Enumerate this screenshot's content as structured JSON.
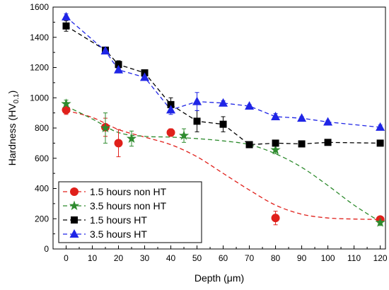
{
  "chart_data": {
    "type": "scatter",
    "title": "",
    "xlabel": "Depth (μm)",
    "ylabel": "Hardness (HV",
    "ylabel_subscript": "0.1",
    "ylabel_close": ")",
    "xlim": [
      -5,
      122
    ],
    "ylim": [
      0,
      1600
    ],
    "x_ticks": [
      0,
      10,
      20,
      30,
      40,
      50,
      60,
      70,
      80,
      90,
      100,
      110,
      120
    ],
    "y_ticks": [
      0,
      200,
      400,
      600,
      800,
      1000,
      1200,
      1400,
      1600
    ],
    "grid": false,
    "legend_position": "bottom-left",
    "series": [
      {
        "name": "1.5 hours non HT",
        "color": "#e0201b",
        "marker": "circle",
        "line_style": "none",
        "points": [
          {
            "x": 0,
            "y": 920,
            "err": 30
          },
          {
            "x": 15,
            "y": 805,
            "err": 60
          },
          {
            "x": 20,
            "y": 700,
            "err": 90
          },
          {
            "x": 40,
            "y": 770,
            "err": 25
          },
          {
            "x": 80,
            "y": 205,
            "err": 45
          },
          {
            "x": 120,
            "y": 195,
            "err": 15
          }
        ],
        "fit": {
          "color": "#e0201b",
          "style": "dashed",
          "points": [
            [
              0,
              915
            ],
            [
              10,
              870
            ],
            [
              20,
              790
            ],
            [
              30,
              740
            ],
            [
              40,
              690
            ],
            [
              50,
              610
            ],
            [
              60,
              500
            ],
            [
              70,
              390
            ],
            [
              80,
              290
            ],
            [
              90,
              230
            ],
            [
              100,
              205
            ],
            [
              110,
              198
            ],
            [
              120,
              195
            ]
          ]
        }
      },
      {
        "name": "3.5 hours non HT",
        "color": "#2e8b2e",
        "marker": "star",
        "line_style": "none",
        "points": [
          {
            "x": 0,
            "y": 960,
            "err": 25
          },
          {
            "x": 15,
            "y": 800,
            "err": 100
          },
          {
            "x": 25,
            "y": 730,
            "err": 50
          },
          {
            "x": 45,
            "y": 750,
            "err": 45
          },
          {
            "x": 80,
            "y": 655,
            "err": 25
          },
          {
            "x": 120,
            "y": 175,
            "err": 20
          }
        ],
        "fit": {
          "color": "#2e8b2e",
          "style": "dashed",
          "points": [
            [
              0,
              945
            ],
            [
              10,
              860
            ],
            [
              20,
              770
            ],
            [
              30,
              745
            ],
            [
              40,
              740
            ],
            [
              50,
              730
            ],
            [
              60,
              715
            ],
            [
              70,
              690
            ],
            [
              80,
              630
            ],
            [
              90,
              540
            ],
            [
              100,
              420
            ],
            [
              110,
              290
            ],
            [
              120,
              180
            ]
          ]
        }
      },
      {
        "name": "1.5 hours HT",
        "color": "#000000",
        "marker": "square",
        "line_style": "dashed",
        "points": [
          {
            "x": 0,
            "y": 1475,
            "err": 35
          },
          {
            "x": 15,
            "y": 1315,
            "err": 15
          },
          {
            "x": 20,
            "y": 1220,
            "err": 25
          },
          {
            "x": 30,
            "y": 1165,
            "err": 10
          },
          {
            "x": 40,
            "y": 955,
            "err": 45
          },
          {
            "x": 50,
            "y": 845,
            "err": 70
          },
          {
            "x": 60,
            "y": 825,
            "err": 50
          },
          {
            "x": 70,
            "y": 690,
            "err": 15
          },
          {
            "x": 80,
            "y": 700,
            "err": 10
          },
          {
            "x": 90,
            "y": 695,
            "err": 10
          },
          {
            "x": 100,
            "y": 705,
            "err": 10
          },
          {
            "x": 120,
            "y": 700,
            "err": 10
          }
        ]
      },
      {
        "name": "3.5 hours HT",
        "color": "#1f25e6",
        "marker": "triangle",
        "line_style": "dashed",
        "points": [
          {
            "x": 0,
            "y": 1535,
            "err": 20
          },
          {
            "x": 15,
            "y": 1310,
            "err": 15
          },
          {
            "x": 20,
            "y": 1185,
            "err": 20
          },
          {
            "x": 30,
            "y": 1135,
            "err": 15
          },
          {
            "x": 40,
            "y": 920,
            "err": 30
          },
          {
            "x": 50,
            "y": 975,
            "err": 60
          },
          {
            "x": 60,
            "y": 965,
            "err": 15
          },
          {
            "x": 70,
            "y": 945,
            "err": 10
          },
          {
            "x": 80,
            "y": 875,
            "err": 20
          },
          {
            "x": 90,
            "y": 865,
            "err": 10
          },
          {
            "x": 100,
            "y": 840,
            "err": 10
          },
          {
            "x": 120,
            "y": 805,
            "err": 15
          }
        ]
      }
    ]
  }
}
